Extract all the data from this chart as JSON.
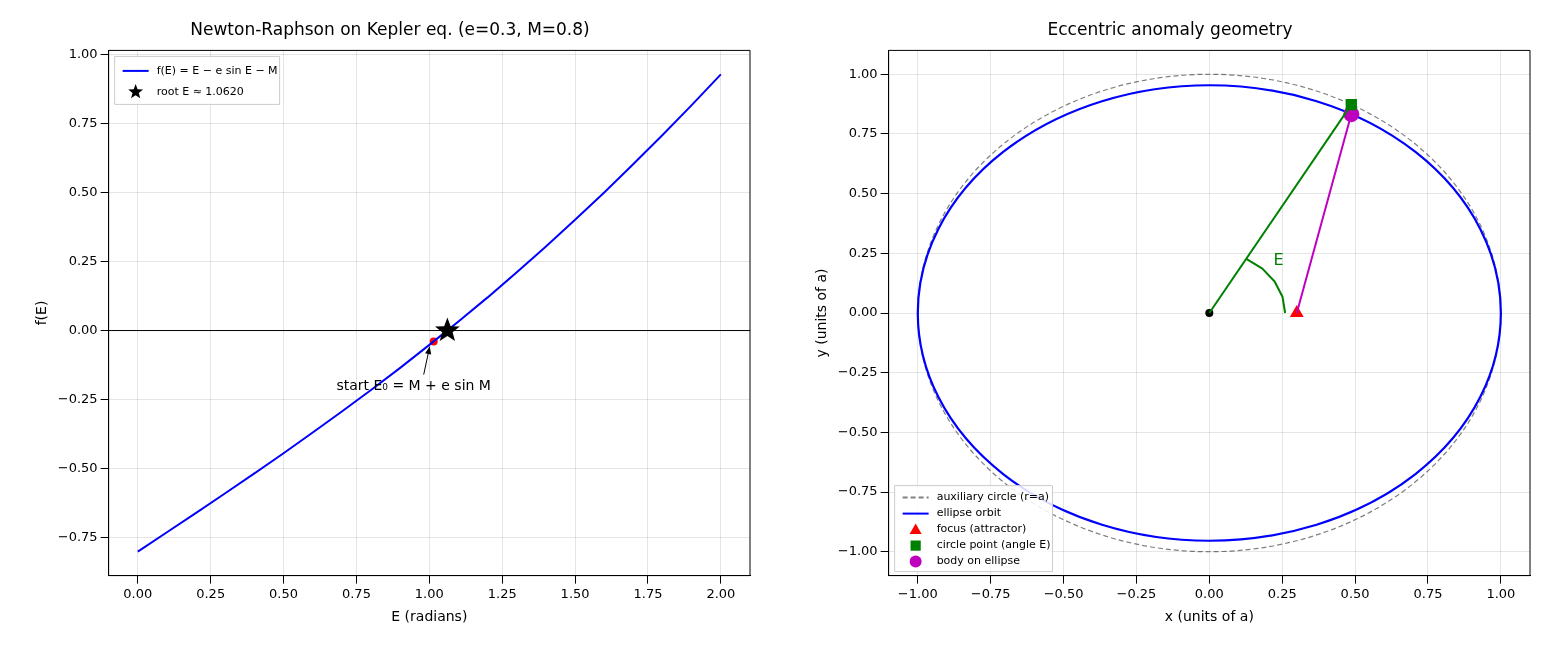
{
  "chart_data": [
    {
      "type": "line",
      "title": "Newton-Raphson on Kepler eq. (e=0.3, M=0.8)",
      "xlabel": "E (radians)",
      "ylabel": "f(E)",
      "grid": true,
      "legend": "top left",
      "xlim": [
        -0.1,
        2.1
      ],
      "ylim": [
        -0.887,
        1.014
      ],
      "xticks": [
        {
          "value": 0,
          "label": "0.00"
        },
        {
          "value": 0.25,
          "label": "0.25"
        },
        {
          "value": 0.5,
          "label": "0.50"
        },
        {
          "value": 0.75,
          "label": "0.75"
        },
        {
          "value": 1,
          "label": "1.00"
        },
        {
          "value": 1.25,
          "label": "1.25"
        },
        {
          "value": 1.5,
          "label": "1.50"
        },
        {
          "value": 1.75,
          "label": "1.75"
        },
        {
          "value": 2,
          "label": "2.00"
        }
      ],
      "yticks": [
        {
          "value": -0.75,
          "label": "−0.75"
        },
        {
          "value": -0.5,
          "label": "−0.50"
        },
        {
          "value": -0.25,
          "label": "−0.25"
        },
        {
          "value": 0,
          "label": "0.00"
        },
        {
          "value": 0.25,
          "label": "0.25"
        },
        {
          "value": 0.5,
          "label": "0.50"
        },
        {
          "value": 0.75,
          "label": "0.75"
        },
        {
          "value": 1,
          "label": "1.00"
        }
      ],
      "ref_lines": [
        {
          "axis": "y",
          "value": 0,
          "color": "#000000"
        }
      ],
      "annotations": [
        {
          "text": "start E₀ = M + e sin M",
          "x": 1.015,
          "y": -0.04
        }
      ],
      "series": [
        {
          "type": "line",
          "name": "f(E) = E − e sin E − M",
          "color": "#0000ff",
          "line_style": "solid",
          "x": [
            0,
            0.1,
            0.2,
            0.3,
            0.4,
            0.5,
            0.6,
            0.7,
            0.8,
            0.9,
            1.0,
            1.1,
            1.2,
            1.3,
            1.4,
            1.5,
            1.6,
            1.7,
            1.8,
            1.9,
            2.0
          ],
          "values": [
            -0.8,
            -0.73,
            -0.66,
            -0.589,
            -0.517,
            -0.444,
            -0.369,
            -0.293,
            -0.215,
            -0.135,
            -0.052,
            0.033,
            0.12,
            0.211,
            0.304,
            0.401,
            0.5,
            0.603,
            0.708,
            0.816,
            0.927
          ]
        },
        {
          "type": "scatter",
          "color": "#ff0000",
          "marker": "circle",
          "x": [
            1.015
          ],
          "values": [
            -0.04
          ]
        },
        {
          "type": "scatter",
          "name": "root E ≈ 1.0620",
          "color": "#000000",
          "marker": "star",
          "x": [
            1.062
          ],
          "values": [
            0
          ]
        }
      ]
    },
    {
      "type": "line",
      "title": "Eccentric anomaly geometry",
      "xlabel": "x (units of a)",
      "ylabel": "y (units of a)",
      "grid": true,
      "legend": "bottom left",
      "annotations": [
        "E",
        "auxiliary circle (r=a)",
        "ellipse orbit"
      ],
      "xlim": [
        -1.1,
        1.1
      ],
      "ylim": [
        -1.1,
        1.1
      ],
      "xticks": [
        {
          "value": -1,
          "label": "−1.00"
        },
        {
          "value": -0.75,
          "label": "−0.75"
        },
        {
          "value": -0.5,
          "label": "−0.50"
        },
        {
          "value": -0.25,
          "label": "−0.25"
        },
        {
          "value": 0,
          "label": "0.00"
        },
        {
          "value": 0.25,
          "label": "0.25"
        },
        {
          "value": 0.5,
          "label": "0.50"
        },
        {
          "value": 0.75,
          "label": "0.75"
        },
        {
          "value": 1,
          "label": "1.00"
        }
      ],
      "yticks": [
        {
          "value": -1,
          "label": "−1.00"
        },
        {
          "value": -0.75,
          "label": "−0.75"
        },
        {
          "value": -0.5,
          "label": "−0.50"
        },
        {
          "value": -0.25,
          "label": "−0.25"
        },
        {
          "value": 0,
          "label": "0.00"
        },
        {
          "value": 0.25,
          "label": "0.25"
        },
        {
          "value": 0.5,
          "label": "0.50"
        },
        {
          "value": 0.75,
          "label": "0.75"
        },
        {
          "value": 1,
          "label": "1.00"
        }
      ],
      "series": [
        {
          "type": "line",
          "color": "#008000",
          "line_style": "solid",
          "x": [
            0,
            0.487
          ],
          "values": [
            0,
            0.873
          ]
        },
        {
          "type": "line",
          "color": "#bf00bf",
          "line_style": "solid",
          "x": [
            0.3,
            0.487
          ],
          "values": [
            0,
            0.833
          ]
        },
        {
          "type": "line",
          "color": "#008000",
          "line_style": "solid",
          "x": [
            0.26,
            0.251,
            0.224,
            0.182,
            0.127
          ],
          "values": [
            0,
            0.068,
            0.132,
            0.186,
            0.227
          ]
        },
        {
          "type": "scatter",
          "color": "#000000",
          "marker": "circle",
          "x": [
            0
          ],
          "values": [
            0
          ]
        },
        {
          "type": "scatter",
          "name": "focus (attractor)",
          "color": "#ff0000",
          "marker": "triangle",
          "x": [
            0.3
          ],
          "values": [
            0
          ]
        },
        {
          "type": "scatter",
          "name": "circle point (angle E)",
          "color": "#008000",
          "marker": "square",
          "x": [
            0.487
          ],
          "values": [
            0.873
          ]
        },
        {
          "type": "scatter",
          "name": "body on ellipse",
          "color": "#bf00bf",
          "marker": "circle",
          "x": [
            0.487
          ],
          "values": [
            0.833
          ]
        }
      ]
    }
  ]
}
